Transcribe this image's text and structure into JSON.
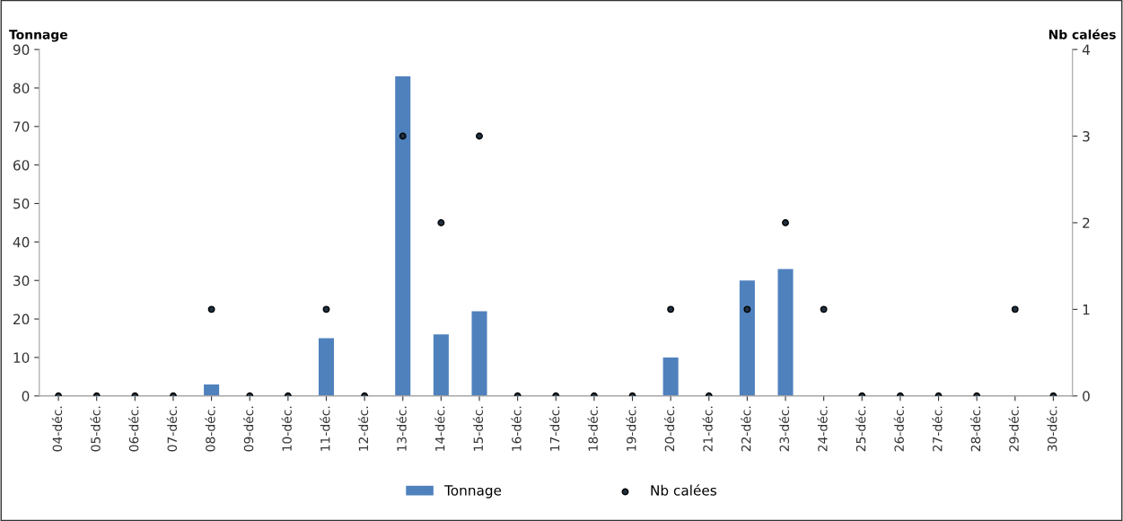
{
  "chart_data": {
    "type": "bar",
    "categories": [
      "04-déc.",
      "05-déc.",
      "06-déc.",
      "07-déc.",
      "08-déc.",
      "09-déc.",
      "10-déc.",
      "11-déc.",
      "12-déc.",
      "13-déc.",
      "14-déc.",
      "15-déc.",
      "16-déc.",
      "17-déc.",
      "18-déc.",
      "19-déc.",
      "20-déc.",
      "21-déc.",
      "22-déc.",
      "23-déc.",
      "24-déc.",
      "25-déc.",
      "26-déc.",
      "27-déc.",
      "28-déc.",
      "29-déc.",
      "30-déc."
    ],
    "ylabel": "Tonnage",
    "y2label": "Nb calées",
    "series": [
      {
        "name": "Tonnage",
        "color": "#4f81bd",
        "values": [
          0,
          0,
          0,
          0,
          3,
          0,
          0,
          15,
          0,
          83,
          16,
          22,
          0,
          0,
          0,
          0,
          10,
          0,
          30,
          33,
          0,
          0,
          0,
          0,
          0,
          0,
          0
        ]
      },
      {
        "name": "Nb calées",
        "type": "scatter",
        "axis": "y2",
        "color": "#1f3040",
        "values": [
          0,
          0,
          0,
          0,
          1,
          0,
          0,
          1,
          0,
          3,
          2,
          3,
          0,
          0,
          0,
          0,
          1,
          0,
          1,
          2,
          1,
          0,
          0,
          0,
          0,
          1,
          0
        ]
      }
    ],
    "ylim": [
      0,
      90
    ],
    "yticks": [
      0,
      10,
      20,
      30,
      40,
      50,
      60,
      70,
      80,
      90
    ],
    "y2lim": [
      0,
      4
    ],
    "y2ticks": [
      0,
      1,
      2,
      3,
      4
    ],
    "marker": "circle",
    "grid": false,
    "legend": "bottom"
  }
}
